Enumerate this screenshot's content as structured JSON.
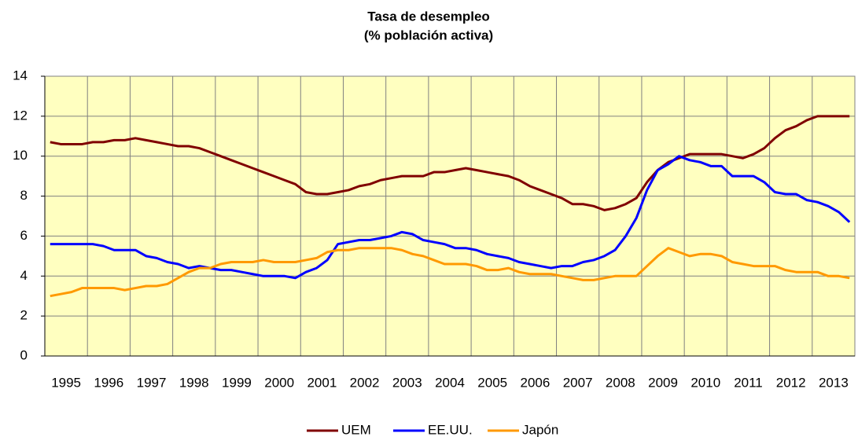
{
  "chart_data": {
    "type": "line",
    "title": "Tasa de desempleo",
    "subtitle": "(% población activa)",
    "categories": [
      "1995",
      null,
      null,
      null,
      "1996",
      null,
      null,
      null,
      "1997",
      null,
      null,
      null,
      "1998",
      null,
      null,
      null,
      "1999",
      null,
      null,
      null,
      "2000",
      null,
      null,
      null,
      "2001",
      null,
      null,
      null,
      "2002",
      null,
      null,
      null,
      "2003",
      null,
      null,
      null,
      "2004",
      null,
      null,
      null,
      "2005",
      null,
      null,
      null,
      "2006",
      null,
      null,
      null,
      "2007",
      null,
      null,
      null,
      "2008",
      null,
      null,
      null,
      "2009",
      null,
      null,
      null,
      "2010",
      null,
      null,
      null,
      "2011",
      null,
      null,
      null,
      "2012",
      null,
      null,
      null,
      "2013",
      null,
      null,
      null
    ],
    "series": [
      {
        "name": "UEM",
        "color": "#800000",
        "values": [
          10.7,
          10.6,
          10.6,
          10.6,
          10.7,
          10.7,
          10.8,
          10.8,
          10.9,
          10.8,
          10.7,
          10.6,
          10.5,
          10.5,
          10.4,
          10.2,
          10.0,
          9.8,
          9.6,
          9.4,
          9.2,
          9.0,
          8.8,
          8.6,
          8.2,
          8.1,
          8.1,
          8.2,
          8.3,
          8.5,
          8.6,
          8.8,
          8.9,
          9.0,
          9.0,
          9.0,
          9.2,
          9.2,
          9.3,
          9.4,
          9.3,
          9.2,
          9.1,
          9.0,
          8.8,
          8.5,
          8.3,
          8.1,
          7.9,
          7.6,
          7.6,
          7.5,
          7.3,
          7.4,
          7.6,
          7.9,
          8.7,
          9.3,
          9.7,
          9.9,
          10.1,
          10.1,
          10.1,
          10.1,
          10.0,
          9.9,
          10.1,
          10.4,
          10.9,
          11.3,
          11.5,
          11.8,
          12.0,
          12.0,
          12.0,
          12.0
        ]
      },
      {
        "name": "EE.UU.",
        "color": "#0000ff",
        "values": [
          5.6,
          5.6,
          5.6,
          5.6,
          5.6,
          5.5,
          5.3,
          5.3,
          5.3,
          5.0,
          4.9,
          4.7,
          4.6,
          4.4,
          4.5,
          4.4,
          4.3,
          4.3,
          4.2,
          4.1,
          4.0,
          4.0,
          4.0,
          3.9,
          4.2,
          4.4,
          4.8,
          5.6,
          5.7,
          5.8,
          5.8,
          5.9,
          6.0,
          6.2,
          6.1,
          5.8,
          5.7,
          5.6,
          5.4,
          5.4,
          5.3,
          5.1,
          5.0,
          4.9,
          4.7,
          4.6,
          4.5,
          4.4,
          4.5,
          4.5,
          4.7,
          4.8,
          5.0,
          5.3,
          6.0,
          6.9,
          8.3,
          9.3,
          9.6,
          10.0,
          9.8,
          9.7,
          9.5,
          9.5,
          9.0,
          9.0,
          9.0,
          8.7,
          8.2,
          8.1,
          8.1,
          7.8,
          7.7,
          7.5,
          7.2,
          6.7
        ]
      },
      {
        "name": "Japón",
        "color": "#ff9900",
        "values": [
          3.0,
          3.1,
          3.2,
          3.4,
          3.4,
          3.4,
          3.4,
          3.3,
          3.4,
          3.5,
          3.5,
          3.6,
          3.9,
          4.2,
          4.4,
          4.4,
          4.6,
          4.7,
          4.7,
          4.7,
          4.8,
          4.7,
          4.7,
          4.7,
          4.8,
          4.9,
          5.2,
          5.3,
          5.3,
          5.4,
          5.4,
          5.4,
          5.4,
          5.3,
          5.1,
          5.0,
          4.8,
          4.6,
          4.6,
          4.6,
          4.5,
          4.3,
          4.3,
          4.4,
          4.2,
          4.1,
          4.1,
          4.1,
          4.0,
          3.9,
          3.8,
          3.8,
          3.9,
          4.0,
          4.0,
          4.0,
          4.5,
          5.0,
          5.4,
          5.2,
          5.0,
          5.1,
          5.1,
          5.0,
          4.7,
          4.6,
          4.5,
          4.5,
          4.5,
          4.3,
          4.2,
          4.2,
          4.2,
          4.0,
          4.0,
          3.9
        ]
      }
    ],
    "ylim": [
      0,
      14
    ],
    "yticks": [
      0,
      2,
      4,
      6,
      8,
      10,
      12,
      14
    ],
    "grid": true,
    "legend": "bottom"
  }
}
